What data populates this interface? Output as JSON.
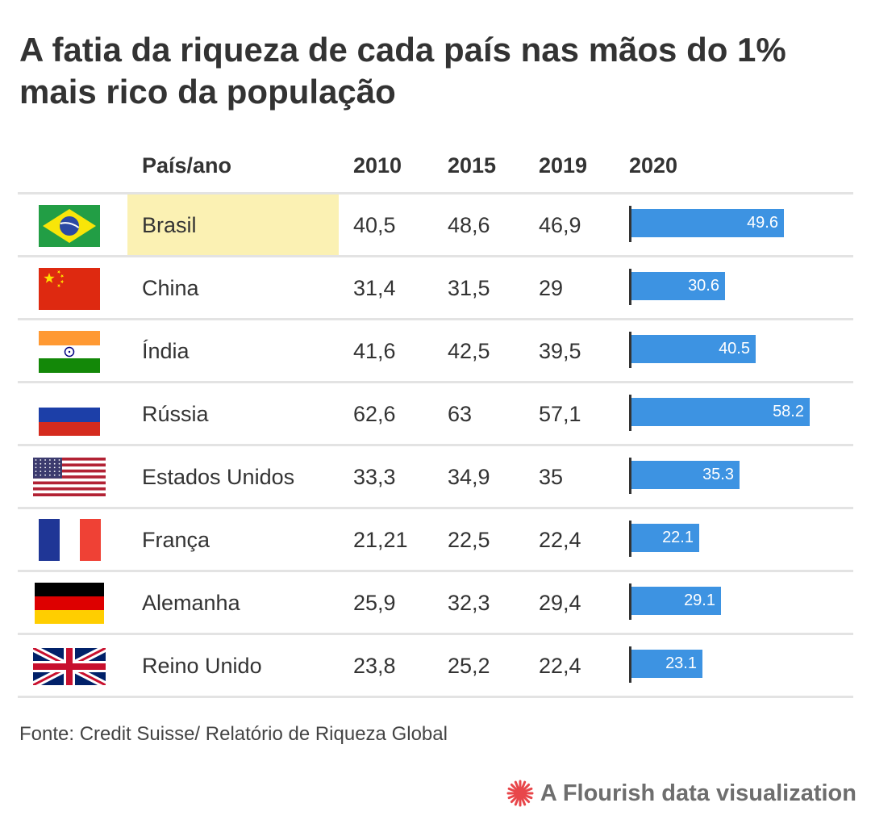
{
  "title": "A fatia da riqueza de cada país nas mãos do 1% mais rico da população",
  "source": "Fonte: Credit Suisse/ Relatório de Riqueza Global",
  "credit": "A Flourish data visualization",
  "colors": {
    "bar": "#3d93e2",
    "highlight": "#fbf1b3",
    "text": "#333333",
    "rule": "#e3e3e3"
  },
  "chart_data": {
    "type": "table",
    "columns": [
      "País/ano",
      "2010",
      "2015",
      "2019",
      "2020"
    ],
    "bar_column": "2020",
    "bar_max": 62.6,
    "highlighted_row": "Brasil",
    "rows": [
      {
        "flag": "flag-brazil",
        "country": "Brasil",
        "y2010": "40,5",
        "y2015": "48,6",
        "y2019": "46,9",
        "y2020": 49.6,
        "y2020_label": "49.6"
      },
      {
        "flag": "flag-china",
        "country": "China",
        "y2010": "31,4",
        "y2015": "31,5",
        "y2019": "29",
        "y2020": 30.6,
        "y2020_label": "30.6"
      },
      {
        "flag": "flag-india",
        "country": "Índia",
        "y2010": "41,6",
        "y2015": "42,5",
        "y2019": "39,5",
        "y2020": 40.5,
        "y2020_label": "40.5"
      },
      {
        "flag": "flag-russia",
        "country": "Rússia",
        "y2010": "62,6",
        "y2015": "63",
        "y2019": "57,1",
        "y2020": 58.2,
        "y2020_label": "58.2"
      },
      {
        "flag": "flag-usa",
        "country": "Estados Unidos",
        "y2010": "33,3",
        "y2015": "34,9",
        "y2019": "35",
        "y2020": 35.3,
        "y2020_label": "35.3"
      },
      {
        "flag": "flag-france",
        "country": "França",
        "y2010": "21,21",
        "y2015": "22,5",
        "y2019": "22,4",
        "y2020": 22.1,
        "y2020_label": "22.1"
      },
      {
        "flag": "flag-germany",
        "country": "Alemanha",
        "y2010": "25,9",
        "y2015": "32,3",
        "y2019": "29,4",
        "y2020": 29.1,
        "y2020_label": "29.1"
      },
      {
        "flag": "flag-uk",
        "country": "Reino Unido",
        "y2010": "23,8",
        "y2015": "25,2",
        "y2019": "22,4",
        "y2020": 23.1,
        "y2020_label": "23.1"
      }
    ]
  }
}
